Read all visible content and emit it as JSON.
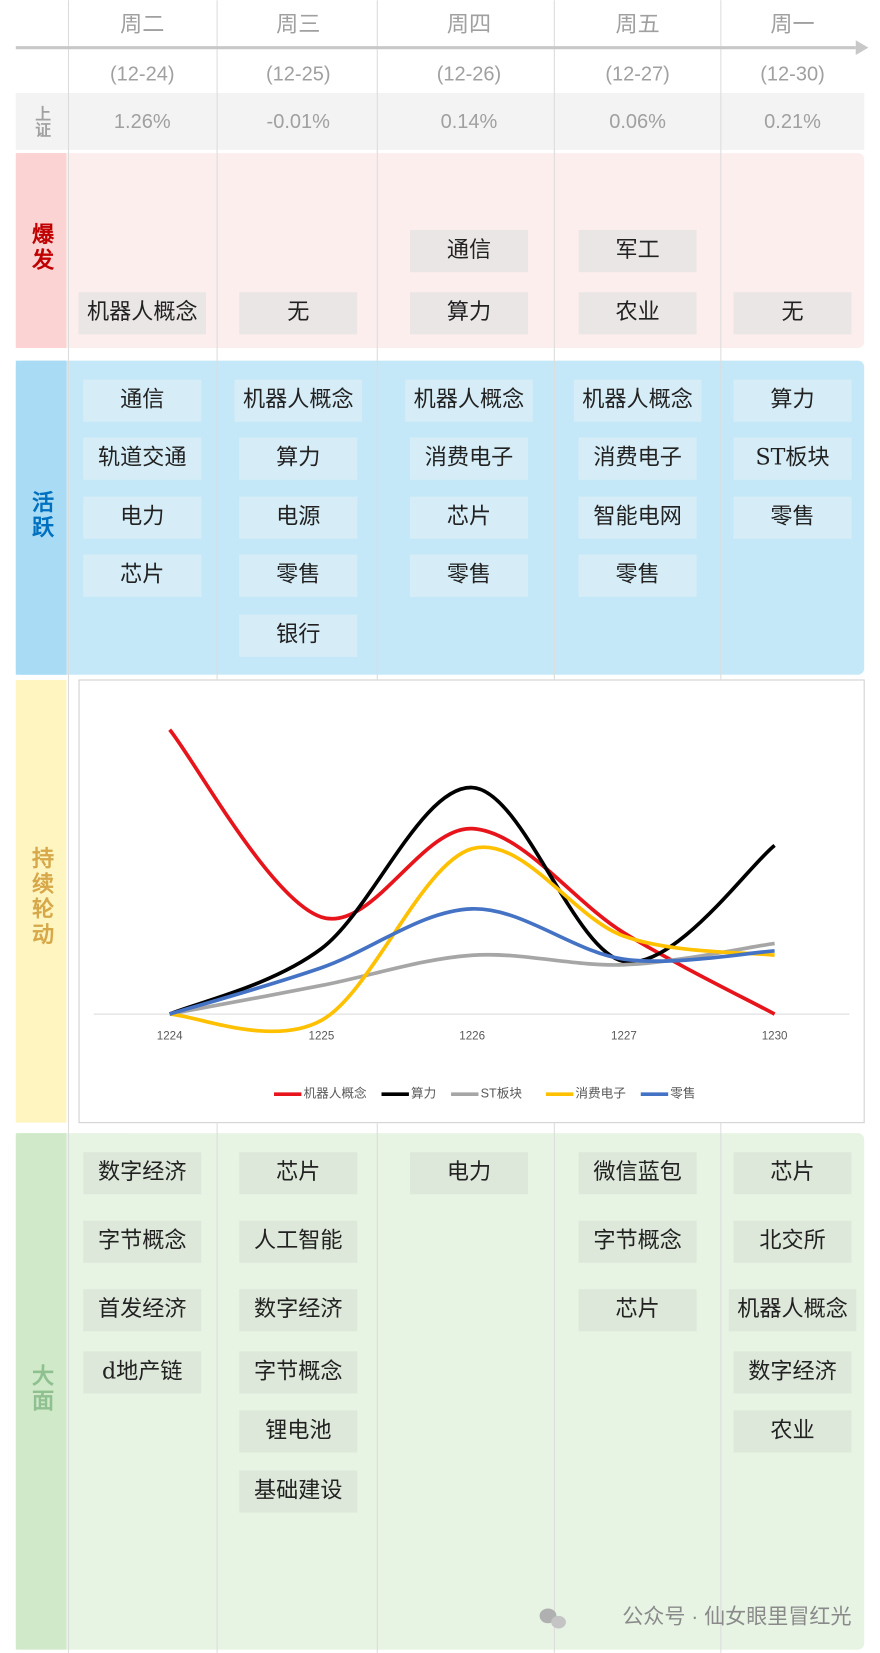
{
  "header": {
    "weekdays": [
      "周二",
      "周三",
      "周四",
      "周五",
      "周一"
    ],
    "dates": [
      "(12-24)",
      "(12-25)",
      "(12-26)",
      "(12-27)",
      "(12-30)"
    ]
  },
  "index_row": {
    "label": "上证",
    "values": [
      "1.26%",
      "-0.01%",
      "0.14%",
      "0.06%",
      "0.21%"
    ]
  },
  "sections": [
    {
      "label": "爆发",
      "cells": [
        [
          "机器人概念"
        ],
        [
          "无"
        ],
        [
          "通信",
          "算力"
        ],
        [
          "军工",
          "农业"
        ],
        [
          "无"
        ]
      ]
    },
    {
      "label": "活跃",
      "cells": [
        [
          "通信",
          "轨道交通",
          "电力",
          "芯片"
        ],
        [
          "机器人概念",
          "算力",
          "电源",
          "零售",
          "银行"
        ],
        [
          "机器人概念",
          "消费电子",
          "芯片",
          "零售"
        ],
        [
          "机器人概念",
          "消费电子",
          "智能电网",
          "零售"
        ],
        [
          "算力",
          "ST板块",
          "零售"
        ]
      ]
    },
    {
      "label": "持续轮动"
    },
    {
      "label": "大面",
      "cells": [
        [
          "数字经济",
          "字节概念",
          "首发经济",
          "d地产链"
        ],
        [
          "芯片",
          "人工智能",
          "数字经济",
          "字节概念",
          "锂电池",
          "基础建设"
        ],
        [
          "电力"
        ],
        [
          "微信蓝包",
          "字节概念",
          "芯片"
        ],
        [
          "芯片",
          "北交所",
          "机器人概念",
          "数字经济",
          "农业"
        ]
      ]
    }
  ],
  "chart_data": {
    "type": "line",
    "categories": [
      "1224",
      "1225",
      "1226",
      "1227",
      "1230"
    ],
    "ylim": [
      0,
      100
    ],
    "series": [
      {
        "name": "机器人概念",
        "color": "#e8141b",
        "values": [
          86.5,
          29.5,
          56.4,
          24.7,
          0
        ]
      },
      {
        "name": "算力",
        "color": "#000000",
        "values": [
          0,
          19.9,
          68.9,
          16,
          51.3
        ]
      },
      {
        "name": "ST板块",
        "color": "#a6a6a6",
        "values": [
          0,
          8.7,
          17.9,
          15,
          21.5
        ]
      },
      {
        "name": "消费电子",
        "color": "#ffc000",
        "values": [
          0,
          -1.9,
          50.3,
          23.7,
          17.9
        ]
      },
      {
        "name": "零售",
        "color": "#4472c4",
        "values": [
          0,
          14.1,
          32,
          16.7,
          19.2
        ]
      }
    ]
  },
  "watermark": "公众号 · 仙女眼里冒红光"
}
